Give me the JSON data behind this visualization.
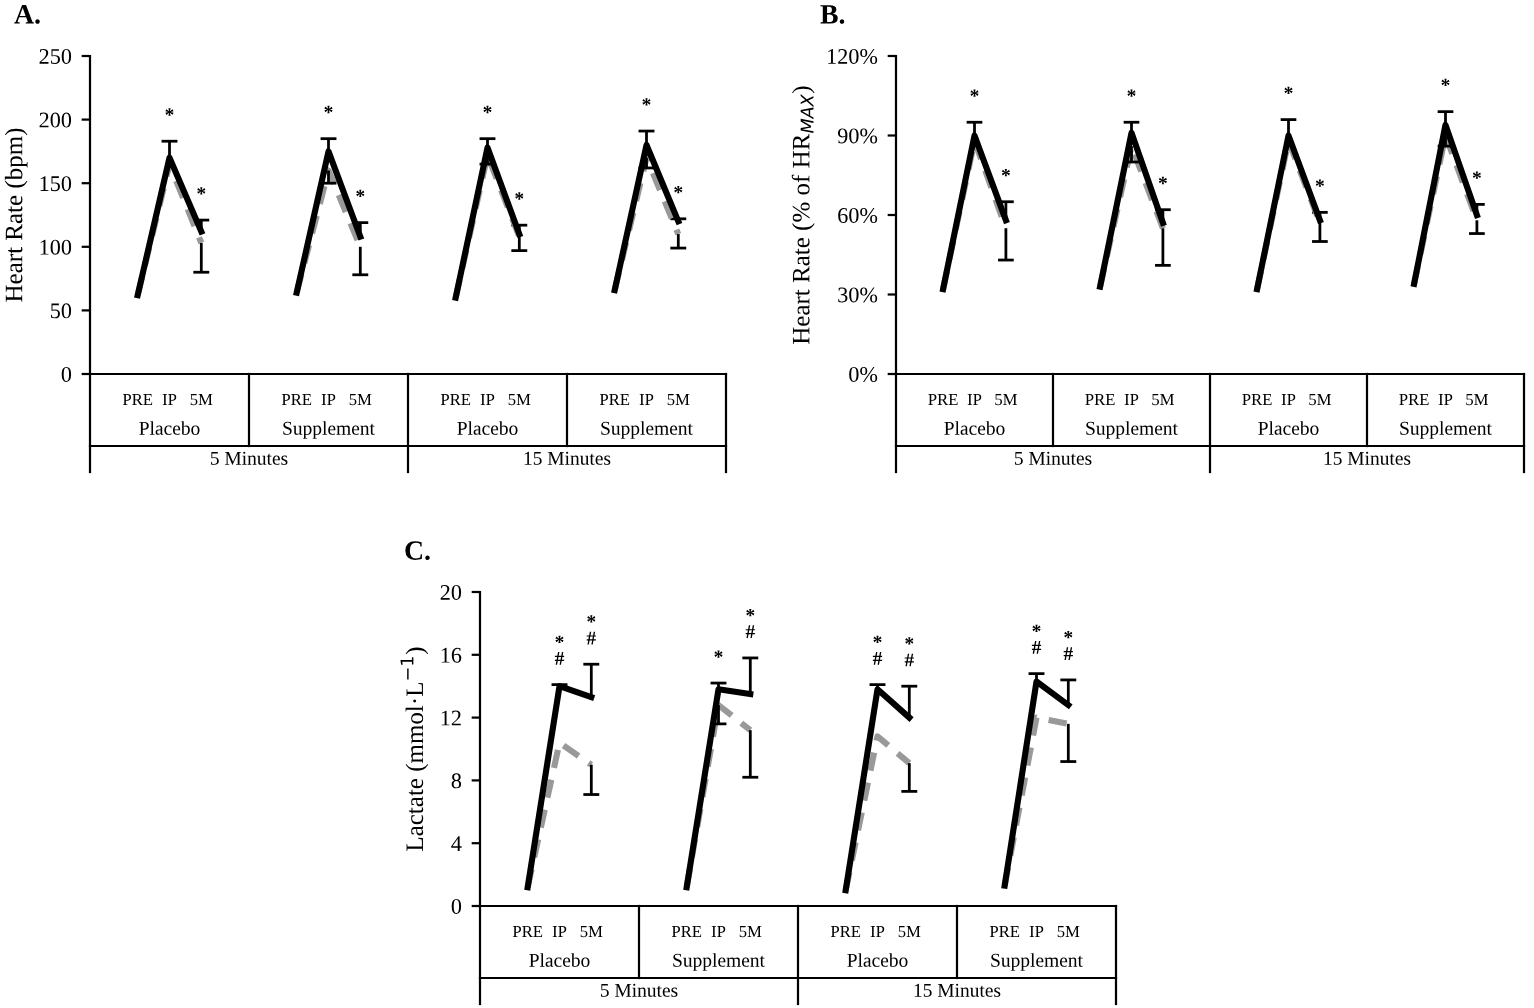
{
  "chart_data": [
    {
      "type": "line",
      "title": "A.",
      "ylabel": "Heart Rate (bpm)",
      "categories": [
        null,
        "PRE",
        "IP",
        "5M",
        null,
        null,
        "PRE",
        "IP",
        "5M",
        null,
        null,
        "PRE",
        "IP",
        "5M",
        null,
        null,
        "PRE",
        "IP",
        "5M",
        null
      ],
      "ylim": [
        0,
        250
      ],
      "yticks": [
        0,
        50,
        100,
        150,
        200,
        250
      ],
      "grid": false,
      "legend": false,
      "marker": "none",
      "series": [
        {
          "values": [
            null,
            62,
            170,
            112,
            null,
            null,
            null,
            null,
            null,
            null,
            null,
            null,
            null,
            null,
            null,
            null,
            null,
            null,
            null,
            null
          ],
          "color": "#000000",
          "line_style": "solid",
          "errors": [
            null,
            null,
            [
              170,
              183
            ],
            [
              112,
              121
            ],
            null,
            null,
            null,
            null,
            null,
            null,
            null,
            null,
            null,
            null,
            null,
            null,
            null,
            null,
            null,
            null
          ]
        },
        {
          "values": [
            null,
            62,
            165,
            103,
            null,
            null,
            null,
            null,
            null,
            null,
            null,
            null,
            null,
            null,
            null,
            null,
            null,
            null,
            null,
            null
          ],
          "color": "#999999",
          "line_style": "dashed",
          "errors": [
            null,
            null,
            null,
            [
              80,
              103
            ],
            null,
            null,
            null,
            null,
            null,
            null,
            null,
            null,
            null,
            null,
            null,
            null,
            null,
            null,
            null,
            null
          ]
        },
        {
          "values": [
            null,
            null,
            null,
            null,
            null,
            null,
            64,
            175,
            108,
            null,
            null,
            null,
            null,
            null,
            null,
            null,
            null,
            null,
            null,
            null
          ],
          "color": "#000000",
          "line_style": "solid",
          "errors": [
            null,
            null,
            null,
            null,
            null,
            null,
            null,
            [
              175,
              185
            ],
            [
              108,
              119
            ],
            null,
            null,
            null,
            null,
            null,
            null,
            null,
            null,
            null,
            null,
            null
          ]
        },
        {
          "values": [
            null,
            null,
            null,
            null,
            null,
            null,
            64,
            160,
            100,
            null,
            null,
            null,
            null,
            null,
            null,
            null,
            null,
            null,
            null,
            null
          ],
          "color": "#999999",
          "line_style": "dashed",
          "errors": [
            null,
            null,
            null,
            null,
            null,
            null,
            null,
            [
              150,
              160
            ],
            [
              78,
              100
            ],
            null,
            null,
            null,
            null,
            null,
            null,
            null,
            null,
            null,
            null,
            null
          ]
        },
        {
          "values": [
            null,
            null,
            null,
            null,
            null,
            null,
            null,
            null,
            null,
            null,
            null,
            60,
            178,
            110,
            null,
            null,
            null,
            null,
            null,
            null
          ],
          "color": "#000000",
          "line_style": "solid",
          "errors": [
            null,
            null,
            null,
            null,
            null,
            null,
            null,
            null,
            null,
            null,
            null,
            null,
            [
              178,
              185
            ],
            [
              110,
              117
            ],
            null,
            null,
            null,
            null,
            null,
            null
          ]
        },
        {
          "values": [
            null,
            null,
            null,
            null,
            null,
            null,
            null,
            null,
            null,
            null,
            null,
            60,
            172,
            108,
            null,
            null,
            null,
            null,
            null,
            null
          ],
          "color": "#999999",
          "line_style": "dashed",
          "errors": [
            null,
            null,
            null,
            null,
            null,
            null,
            null,
            null,
            null,
            null,
            null,
            null,
            [
              165,
              172
            ],
            [
              97,
              108
            ],
            null,
            null,
            null,
            null,
            null,
            null
          ]
        },
        {
          "values": [
            null,
            null,
            null,
            null,
            null,
            null,
            null,
            null,
            null,
            null,
            null,
            null,
            null,
            null,
            null,
            null,
            66,
            180,
            120,
            null
          ],
          "color": "#000000",
          "line_style": "solid",
          "errors": [
            null,
            null,
            null,
            null,
            null,
            null,
            null,
            null,
            null,
            null,
            null,
            null,
            null,
            null,
            null,
            null,
            null,
            [
              180,
              191
            ],
            [
              120,
              122
            ],
            null
          ]
        },
        {
          "values": [
            null,
            null,
            null,
            null,
            null,
            null,
            null,
            null,
            null,
            null,
            null,
            null,
            null,
            null,
            null,
            null,
            66,
            170,
            110,
            null
          ],
          "color": "#999999",
          "line_style": "dashed",
          "errors": [
            null,
            null,
            null,
            null,
            null,
            null,
            null,
            null,
            null,
            null,
            null,
            null,
            null,
            null,
            null,
            null,
            null,
            [
              162,
              170
            ],
            [
              99,
              110
            ],
            null
          ]
        }
      ],
      "annotations": [
        "Placebo",
        "Supplement",
        "Placebo",
        "Supplement",
        "5 Minutes",
        "15 Minutes",
        "*",
        "*",
        "*",
        "*",
        "*",
        "*",
        "*",
        "*"
      ]
    },
    {
      "type": "line",
      "title": "B.",
      "ylabel": "Heart Rate (% of HR$_{MAX}$)",
      "categories": [
        null,
        "PRE",
        "IP",
        "5M",
        null,
        null,
        "PRE",
        "IP",
        "5M",
        null,
        null,
        "PRE",
        "IP",
        "5M",
        null,
        null,
        "PRE",
        "IP",
        "5M",
        null
      ],
      "ylim": [
        0,
        120
      ],
      "yticks": [
        {
          "value": 0,
          "label": "0%"
        },
        {
          "value": 30,
          "label": "30%"
        },
        {
          "value": 60,
          "label": "60%"
        },
        {
          "value": 90,
          "label": "90%"
        },
        {
          "value": 120,
          "label": "120%"
        }
      ],
      "grid": false,
      "legend": false,
      "marker": "none",
      "series": [
        {
          "values": [
            null,
            32,
            90,
            58,
            null,
            null,
            null,
            null,
            null,
            null,
            null,
            null,
            null,
            null,
            null,
            null,
            null,
            null,
            null,
            null
          ],
          "color": "#000000",
          "line_style": "solid",
          "errors": [
            null,
            null,
            [
              90,
              95
            ],
            [
              58,
              65
            ],
            null,
            null,
            null,
            null,
            null,
            null,
            null,
            null,
            null,
            null,
            null,
            null,
            null,
            null,
            null,
            null
          ]
        },
        {
          "values": [
            null,
            32,
            88,
            55,
            null,
            null,
            null,
            null,
            null,
            null,
            null,
            null,
            null,
            null,
            null,
            null,
            null,
            null,
            null,
            null
          ],
          "color": "#999999",
          "line_style": "dashed",
          "errors": [
            null,
            null,
            null,
            [
              43,
              55
            ],
            null,
            null,
            null,
            null,
            null,
            null,
            null,
            null,
            null,
            null,
            null,
            null,
            null,
            null,
            null,
            null
          ]
        },
        {
          "values": [
            null,
            null,
            null,
            null,
            null,
            null,
            33,
            91,
            57,
            null,
            null,
            null,
            null,
            null,
            null,
            null,
            null,
            null,
            null,
            null
          ],
          "color": "#000000",
          "line_style": "solid",
          "errors": [
            null,
            null,
            null,
            null,
            null,
            null,
            null,
            [
              91,
              95
            ],
            [
              57,
              62
            ],
            null,
            null,
            null,
            null,
            null,
            null,
            null,
            null,
            null,
            null,
            null
          ]
        },
        {
          "values": [
            null,
            null,
            null,
            null,
            null,
            null,
            33,
            86,
            55,
            null,
            null,
            null,
            null,
            null,
            null,
            null,
            null,
            null,
            null,
            null
          ],
          "color": "#999999",
          "line_style": "dashed",
          "errors": [
            null,
            null,
            null,
            null,
            null,
            null,
            null,
            [
              80,
              86
            ],
            [
              41,
              55
            ],
            null,
            null,
            null,
            null,
            null,
            null,
            null,
            null,
            null,
            null,
            null
          ]
        },
        {
          "values": [
            null,
            null,
            null,
            null,
            null,
            null,
            null,
            null,
            null,
            null,
            null,
            32,
            90,
            58,
            null,
            null,
            null,
            null,
            null,
            null
          ],
          "color": "#000000",
          "line_style": "solid",
          "errors": [
            null,
            null,
            null,
            null,
            null,
            null,
            null,
            null,
            null,
            null,
            null,
            null,
            [
              90,
              96
            ],
            [
              58,
              61
            ],
            null,
            null,
            null,
            null,
            null,
            null
          ]
        },
        {
          "values": [
            null,
            null,
            null,
            null,
            null,
            null,
            null,
            null,
            null,
            null,
            null,
            32,
            88,
            57,
            null,
            null,
            null,
            null,
            null,
            null
          ],
          "color": "#999999",
          "line_style": "dashed",
          "errors": [
            null,
            null,
            null,
            null,
            null,
            null,
            null,
            null,
            null,
            null,
            null,
            null,
            null,
            [
              50,
              57
            ],
            null,
            null,
            null,
            null,
            null,
            null
          ]
        },
        {
          "values": [
            null,
            null,
            null,
            null,
            null,
            null,
            null,
            null,
            null,
            null,
            null,
            null,
            null,
            null,
            null,
            null,
            34,
            94,
            60,
            null
          ],
          "color": "#000000",
          "line_style": "solid",
          "errors": [
            null,
            null,
            null,
            null,
            null,
            null,
            null,
            null,
            null,
            null,
            null,
            null,
            null,
            null,
            null,
            null,
            null,
            [
              94,
              99
            ],
            [
              60,
              64
            ],
            null
          ]
        },
        {
          "values": [
            null,
            null,
            null,
            null,
            null,
            null,
            null,
            null,
            null,
            null,
            null,
            null,
            null,
            null,
            null,
            null,
            34,
            90,
            58,
            null
          ],
          "color": "#999999",
          "line_style": "dashed",
          "errors": [
            null,
            null,
            null,
            null,
            null,
            null,
            null,
            null,
            null,
            null,
            null,
            null,
            null,
            null,
            null,
            null,
            null,
            [
              86,
              90
            ],
            [
              53,
              58
            ],
            null
          ]
        }
      ],
      "annotations": [
        "Placebo",
        "Supplement",
        "Placebo",
        "Supplement",
        "5 Minutes",
        "15 Minutes",
        "*",
        "*",
        "*",
        "*",
        "*",
        "*",
        "*",
        "*"
      ]
    },
    {
      "type": "line",
      "title": "C.",
      "ylabel": "Lactate (mmol·L$^{−1}$)",
      "categories": [
        null,
        "PRE",
        "IP",
        "5M",
        null,
        null,
        "PRE",
        "IP",
        "5M",
        null,
        null,
        "PRE",
        "IP",
        "5M",
        null,
        null,
        "PRE",
        "IP",
        "5M",
        null
      ],
      "ylim": [
        0,
        20
      ],
      "yticks": [
        0,
        4,
        8,
        12,
        16,
        20
      ],
      "grid": false,
      "legend": false,
      "marker": "none",
      "series": [
        {
          "values": [
            null,
            1.2,
            14,
            13.3,
            null,
            null,
            null,
            null,
            null,
            null,
            null,
            null,
            null,
            null,
            null,
            null,
            null,
            null,
            null,
            null
          ],
          "color": "#000000",
          "line_style": "solid",
          "errors": [
            null,
            null,
            [
              14,
              14.1
            ],
            [
              13.3,
              15.4
            ],
            null,
            null,
            null,
            null,
            null,
            null,
            null,
            null,
            null,
            null,
            null,
            null,
            null,
            null,
            null,
            null
          ]
        },
        {
          "values": [
            null,
            1.2,
            10.4,
            9,
            null,
            null,
            null,
            null,
            null,
            null,
            null,
            null,
            null,
            null,
            null,
            null,
            null,
            null,
            null,
            null
          ],
          "color": "#999999",
          "line_style": "dashed",
          "errors": [
            null,
            null,
            null,
            [
              7.1,
              9
            ],
            null,
            null,
            null,
            null,
            null,
            null,
            null,
            null,
            null,
            null,
            null,
            null,
            null,
            null,
            null,
            null
          ]
        },
        {
          "values": [
            null,
            null,
            null,
            null,
            null,
            null,
            1.2,
            13.8,
            13.5,
            null,
            null,
            null,
            null,
            null,
            null,
            null,
            null,
            null,
            null,
            null
          ],
          "color": "#000000",
          "line_style": "solid",
          "errors": [
            null,
            null,
            null,
            null,
            null,
            null,
            null,
            [
              13.8,
              14.2
            ],
            [
              13.5,
              15.8
            ],
            null,
            null,
            null,
            null,
            null,
            null,
            null,
            null,
            null,
            null,
            null
          ]
        },
        {
          "values": [
            null,
            null,
            null,
            null,
            null,
            null,
            1.2,
            12.8,
            11.2,
            null,
            null,
            null,
            null,
            null,
            null,
            null,
            null,
            null,
            null,
            null
          ],
          "color": "#999999",
          "line_style": "dashed",
          "errors": [
            null,
            null,
            null,
            null,
            null,
            null,
            null,
            [
              11.6,
              12.8
            ],
            [
              8.2,
              11.2
            ],
            null,
            null,
            null,
            null,
            null,
            null,
            null,
            null,
            null,
            null,
            null
          ]
        },
        {
          "values": [
            null,
            null,
            null,
            null,
            null,
            null,
            null,
            null,
            null,
            null,
            null,
            1.0,
            13.8,
            12,
            null,
            null,
            null,
            null,
            null,
            null
          ],
          "color": "#000000",
          "line_style": "solid",
          "errors": [
            null,
            null,
            null,
            null,
            null,
            null,
            null,
            null,
            null,
            null,
            null,
            null,
            [
              13.8,
              14.1
            ],
            [
              12,
              14
            ],
            null,
            null,
            null,
            null,
            null,
            null
          ]
        },
        {
          "values": [
            null,
            null,
            null,
            null,
            null,
            null,
            null,
            null,
            null,
            null,
            null,
            1.0,
            10.8,
            9.1,
            null,
            null,
            null,
            null,
            null,
            null
          ],
          "color": "#999999",
          "line_style": "dashed",
          "errors": [
            null,
            null,
            null,
            null,
            null,
            null,
            null,
            null,
            null,
            null,
            null,
            null,
            null,
            [
              7.3,
              9.1
            ],
            null,
            null,
            null,
            null,
            null,
            null
          ]
        },
        {
          "values": [
            null,
            null,
            null,
            null,
            null,
            null,
            null,
            null,
            null,
            null,
            null,
            null,
            null,
            null,
            null,
            null,
            1.3,
            14.3,
            12.8,
            null
          ],
          "color": "#000000",
          "line_style": "solid",
          "errors": [
            null,
            null,
            null,
            null,
            null,
            null,
            null,
            null,
            null,
            null,
            null,
            null,
            null,
            null,
            null,
            null,
            null,
            [
              14.3,
              14.8
            ],
            [
              12.8,
              14.4
            ],
            null
          ]
        },
        {
          "values": [
            null,
            null,
            null,
            null,
            null,
            null,
            null,
            null,
            null,
            null,
            null,
            null,
            null,
            null,
            null,
            null,
            1.3,
            12,
            11.6,
            null
          ],
          "color": "#999999",
          "line_style": "dashed",
          "errors": [
            null,
            null,
            null,
            null,
            null,
            null,
            null,
            null,
            null,
            null,
            null,
            null,
            null,
            null,
            null,
            null,
            null,
            null,
            [
              9.2,
              11.6
            ],
            null
          ]
        }
      ],
      "annotations": [
        "Placebo",
        "Supplement",
        "Placebo",
        "Supplement",
        "5 Minutes",
        "15 Minutes",
        "*\n#",
        "*\n#",
        "*",
        "*\n#",
        "*\n#",
        "*\n#",
        "*\n#",
        "*\n#"
      ]
    }
  ]
}
